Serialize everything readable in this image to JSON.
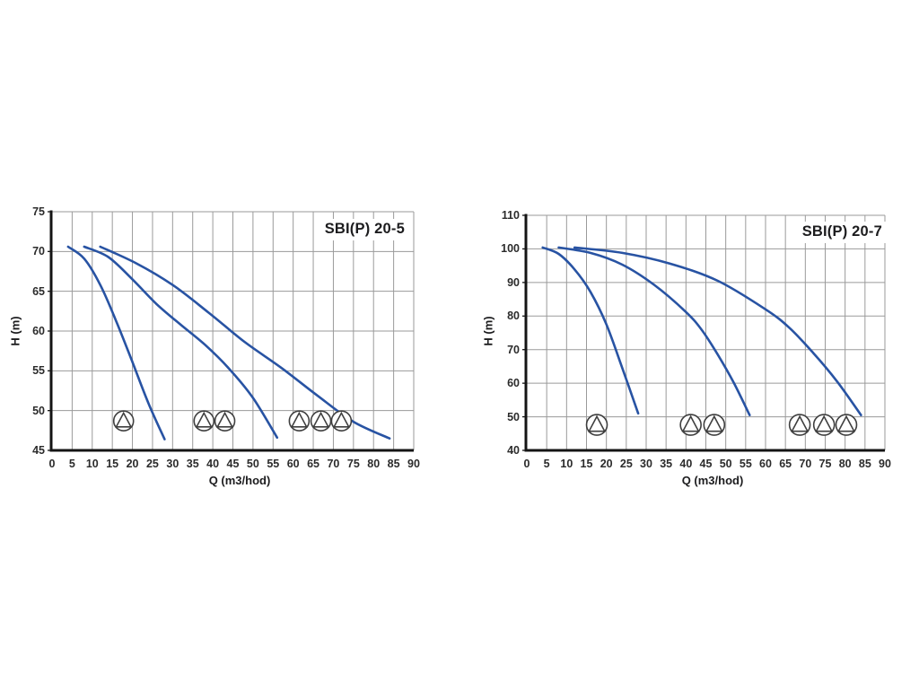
{
  "colors": {
    "curve": "#2853a3",
    "grid": "#9a9a9a",
    "axis": "#141414",
    "icon_outline": "#3f3f3f",
    "tick_text": "#2b2b2b"
  },
  "chart_data": [
    {
      "type": "line",
      "title": "SBI(P) 20-5",
      "xlabel": "Q (m3/hod)",
      "ylabel": "H (m)",
      "xlim": [
        0,
        90
      ],
      "ylim": [
        45,
        75
      ],
      "x_ticks": [
        0,
        5,
        10,
        15,
        20,
        25,
        30,
        35,
        40,
        45,
        50,
        55,
        60,
        65,
        70,
        75,
        80,
        85,
        90
      ],
      "y_ticks": [
        45,
        50,
        55,
        60,
        65,
        70,
        75
      ],
      "grid": true,
      "legend_position": "none",
      "series": [
        {
          "name": "1-pump",
          "points": [
            [
              4,
              70.6
            ],
            [
              8,
              69.1
            ],
            [
              12,
              65.8
            ],
            [
              16,
              61.2
            ],
            [
              20,
              56.1
            ],
            [
              24,
              50.9
            ],
            [
              28,
              46.4
            ]
          ]
        },
        {
          "name": "2-pumps",
          "points": [
            [
              8,
              70.6
            ],
            [
              14,
              69.3
            ],
            [
              20,
              66.5
            ],
            [
              26,
              63.4
            ],
            [
              32,
              60.8
            ],
            [
              38,
              58.3
            ],
            [
              44,
              55.3
            ],
            [
              50,
              51.6
            ],
            [
              56,
              46.6
            ]
          ]
        },
        {
          "name": "3-pumps",
          "points": [
            [
              12,
              70.6
            ],
            [
              21,
              68.5
            ],
            [
              30,
              65.8
            ],
            [
              39,
              62.3
            ],
            [
              48,
              58.6
            ],
            [
              57,
              55.4
            ],
            [
              66,
              51.9
            ],
            [
              75,
              48.6
            ],
            [
              84,
              46.5
            ]
          ]
        }
      ],
      "pump_icon_rows": {
        "h_center": 48.7,
        "groups": [
          [
            17.8
          ],
          [
            37.8,
            43.0
          ],
          [
            61.5,
            66.9,
            72.0
          ]
        ]
      }
    },
    {
      "type": "line",
      "title": "SBI(P) 20-7",
      "xlabel": "Q (m3/hod)",
      "ylabel": "H (m)",
      "xlim": [
        0,
        90
      ],
      "ylim": [
        40,
        110
      ],
      "x_ticks": [
        0,
        5,
        10,
        15,
        20,
        25,
        30,
        35,
        40,
        45,
        50,
        55,
        60,
        65,
        70,
        75,
        80,
        85,
        90
      ],
      "y_ticks": [
        40,
        50,
        60,
        70,
        80,
        90,
        100,
        110
      ],
      "grid": true,
      "legend_position": "none",
      "series": [
        {
          "name": "1-pump",
          "points": [
            [
              4,
              100.4
            ],
            [
              8,
              98.5
            ],
            [
              12,
              93.9
            ],
            [
              16,
              87.2
            ],
            [
              20,
              77.5
            ],
            [
              24,
              64.5
            ],
            [
              28,
              51.0
            ]
          ]
        },
        {
          "name": "2-pumps",
          "points": [
            [
              8,
              100.4
            ],
            [
              16,
              98.8
            ],
            [
              24,
              95.3
            ],
            [
              32,
              89.3
            ],
            [
              40,
              81.2
            ],
            [
              44,
              75.8
            ],
            [
              48,
              68.5
            ],
            [
              52,
              60.2
            ],
            [
              56,
              50.5
            ]
          ]
        },
        {
          "name": "3-pumps",
          "points": [
            [
              12,
              100.4
            ],
            [
              24,
              98.8
            ],
            [
              36,
              95.6
            ],
            [
              48,
              90.5
            ],
            [
              60,
              82.0
            ],
            [
              66,
              76.5
            ],
            [
              72,
              69.0
            ],
            [
              78,
              60.5
            ],
            [
              84,
              50.5
            ]
          ]
        }
      ],
      "pump_icon_rows": {
        "h_center": 47.6,
        "groups": [
          [
            17.6
          ],
          [
            41.2,
            47.1
          ],
          [
            68.6,
            74.7,
            80.3
          ]
        ]
      }
    }
  ]
}
